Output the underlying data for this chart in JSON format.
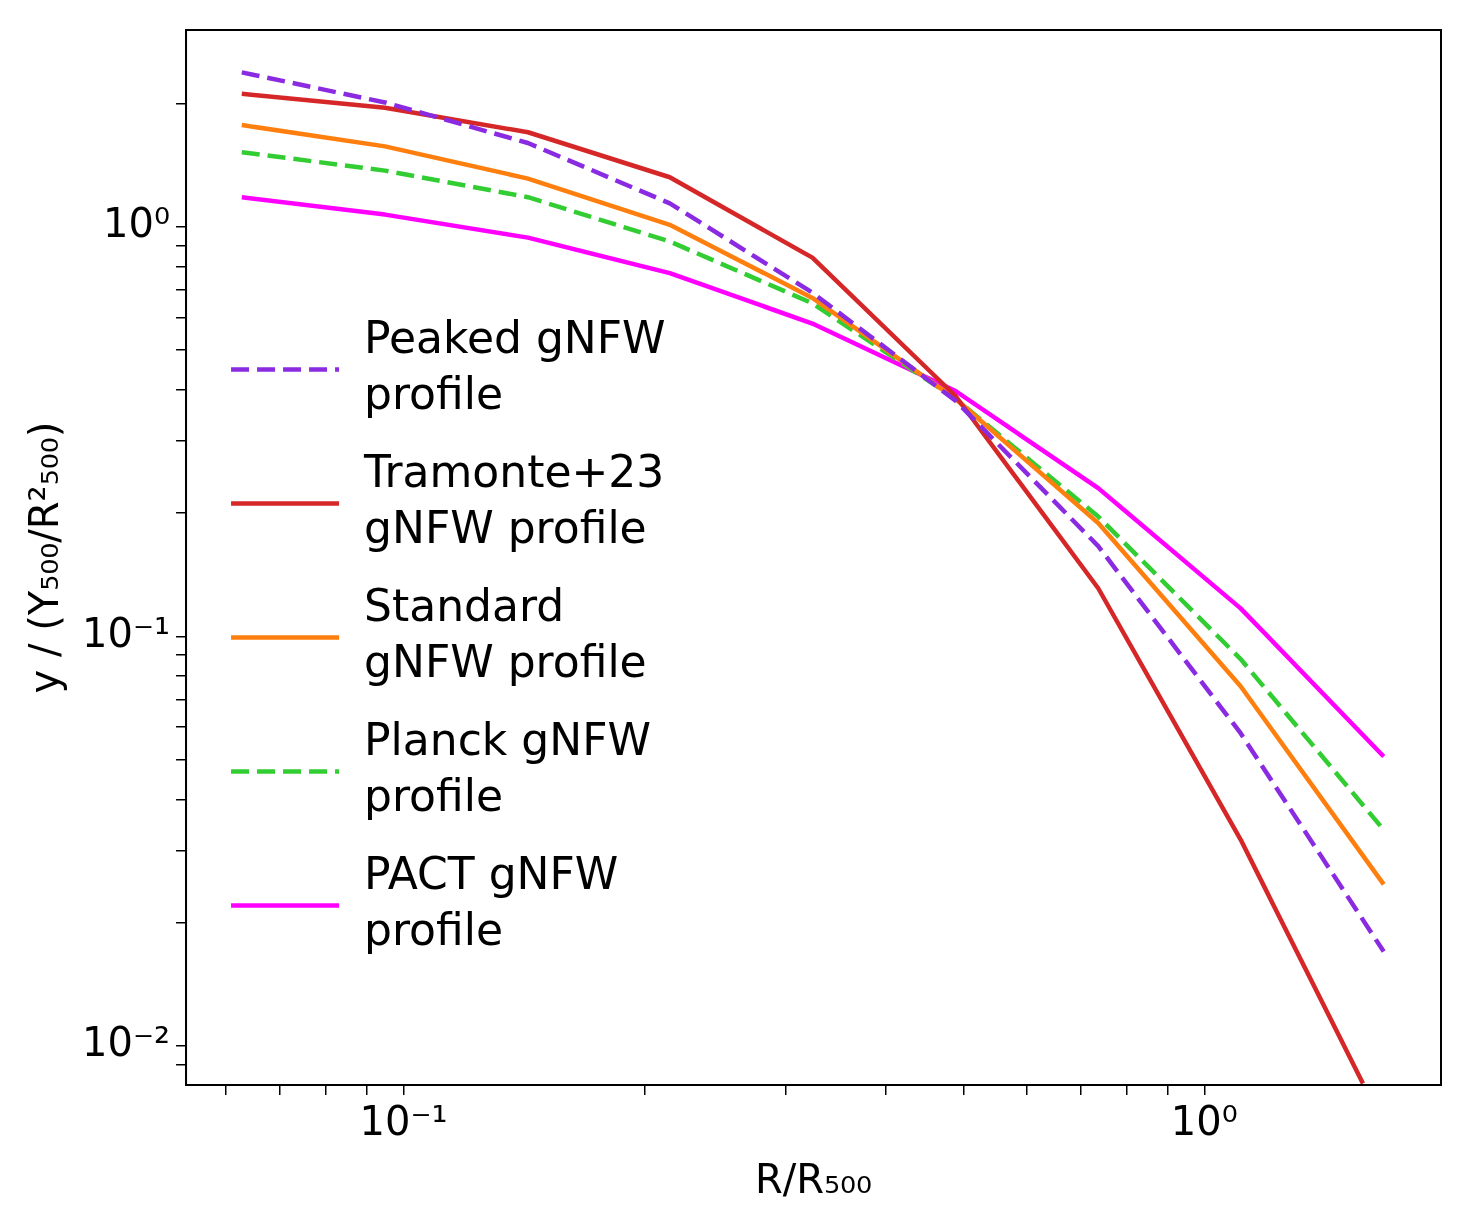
{
  "chart_data": {
    "type": "line",
    "xlabel": "R/R₅₀₀",
    "ylabel": "y / (Y₅₀₀/R²₅₀₀)",
    "log": "xy",
    "grid": false,
    "legend": "center left",
    "marker": "none",
    "x": [
      0.0628,
      0.0948,
      0.143,
      0.215,
      0.324,
      0.489,
      0.737,
      1.11,
      1.675
    ],
    "xlim": [
      0.0535,
      1.975
    ],
    "ylim": [
      0.00803,
      3.02
    ],
    "xticks": [
      {
        "value": 0.06,
        "label": null
      },
      {
        "value": 0.07,
        "label": null
      },
      {
        "value": 0.08,
        "label": null
      },
      {
        "value": 0.09,
        "label": null
      },
      {
        "value": 0.1,
        "label": "10⁻¹"
      },
      {
        "value": 0.2,
        "label": null
      },
      {
        "value": 0.3,
        "label": null
      },
      {
        "value": 0.4,
        "label": null
      },
      {
        "value": 0.5,
        "label": null
      },
      {
        "value": 0.6,
        "label": null
      },
      {
        "value": 0.7,
        "label": null
      },
      {
        "value": 0.8,
        "label": null
      },
      {
        "value": 0.9,
        "label": null
      },
      {
        "value": 1,
        "label": "10⁰"
      }
    ],
    "yticks": [
      {
        "value": 0.009,
        "label": null
      },
      {
        "value": 0.01,
        "label": "10⁻²"
      },
      {
        "value": 0.02,
        "label": null
      },
      {
        "value": 0.03,
        "label": null
      },
      {
        "value": 0.04,
        "label": null
      },
      {
        "value": 0.05,
        "label": null
      },
      {
        "value": 0.06,
        "label": null
      },
      {
        "value": 0.07,
        "label": null
      },
      {
        "value": 0.08,
        "label": null
      },
      {
        "value": 0.09,
        "label": null
      },
      {
        "value": 0.1,
        "label": "10⁻¹"
      },
      {
        "value": 0.2,
        "label": null
      },
      {
        "value": 0.3,
        "label": null
      },
      {
        "value": 0.4,
        "label": null
      },
      {
        "value": 0.5,
        "label": null
      },
      {
        "value": 0.6,
        "label": null
      },
      {
        "value": 0.7,
        "label": null
      },
      {
        "value": 0.8,
        "label": null
      },
      {
        "value": 0.9,
        "label": null
      },
      {
        "value": 1,
        "label": "10⁰"
      },
      {
        "value": 2,
        "label": null
      }
    ],
    "series": [
      {
        "name": "Peaked gNFW profile",
        "color": "#8a2be2",
        "line_style": "dashed",
        "values": [
          2.38,
          2.01,
          1.6,
          1.14,
          0.69,
          0.376,
          0.166,
          0.058,
          0.017
        ]
      },
      {
        "name": "Tramonte+23 gNFW profile",
        "color": "#d62728",
        "line_style": "solid",
        "x": [
          0.0628,
          0.0948,
          0.143,
          0.215,
          0.324,
          0.489,
          0.737,
          1.11,
          1.578
        ],
        "values": [
          2.11,
          1.95,
          1.7,
          1.32,
          0.84,
          0.386,
          0.131,
          0.0319,
          0.0081
        ]
      },
      {
        "name": "Standard gNFW profile",
        "color": "#ff7f0e",
        "line_style": "solid",
        "values": [
          1.77,
          1.57,
          1.31,
          1.01,
          0.67,
          0.38,
          0.189,
          0.0755,
          0.0248
        ]
      },
      {
        "name": "Planck gNFW profile",
        "color": "#32cd32",
        "line_style": "dashed",
        "values": [
          1.52,
          1.37,
          1.18,
          0.92,
          0.65,
          0.38,
          0.196,
          0.088,
          0.0337
        ]
      },
      {
        "name": "PACT gNFW profile",
        "color": "#ff00ff",
        "line_style": "solid",
        "values": [
          1.18,
          1.07,
          0.94,
          0.77,
          0.58,
          0.397,
          0.23,
          0.117,
          0.0509
        ]
      }
    ]
  }
}
